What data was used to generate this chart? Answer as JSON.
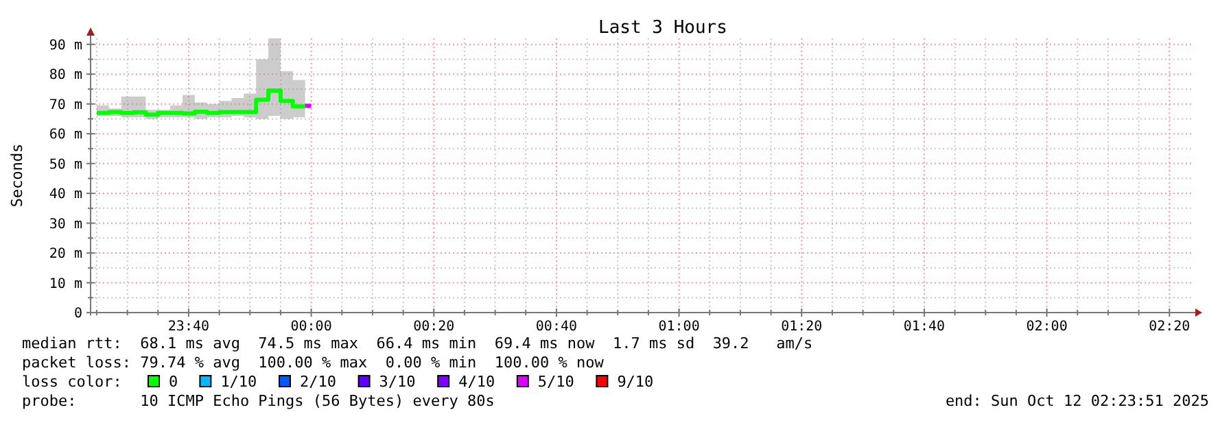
{
  "chart_data": {
    "type": "step",
    "title": "Last 3 Hours",
    "ylabel": "Seconds",
    "legend_title": "loss color:",
    "annotations": [
      "median rtt:  68.1 ms avg  74.5 ms max  66.4 ms min  69.4 ms now  1.7 ms sd  39.2   am/s",
      "packet loss: 79.74 % avg  100.00 % max  0.00 % min  100.00 % now",
      "probe:       10 ICMP Echo Pings (56 Bytes) every 80s",
      "end: Sun Oct 12 02:23:51 2025"
    ],
    "xlim": [
      "2025-10-11T23:24",
      "2025-10-12T02:24"
    ],
    "xticks": [
      {
        "value": "2025-10-11T23:25",
        "label": null
      },
      {
        "value": "2025-10-11T23:30",
        "label": null
      },
      {
        "value": "2025-10-11T23:35",
        "label": null
      },
      {
        "value": "2025-10-11T23:40",
        "label": "23:40"
      },
      {
        "value": "2025-10-11T23:45",
        "label": null
      },
      {
        "value": "2025-10-11T23:50",
        "label": null
      },
      {
        "value": "2025-10-11T23:55",
        "label": null
      },
      {
        "value": "2025-10-12T00:00",
        "label": "00:00"
      },
      {
        "value": "2025-10-12T00:05",
        "label": null
      },
      {
        "value": "2025-10-12T00:10",
        "label": null
      },
      {
        "value": "2025-10-12T00:15",
        "label": null
      },
      {
        "value": "2025-10-12T00:20",
        "label": "00:20"
      },
      {
        "value": "2025-10-12T00:25",
        "label": null
      },
      {
        "value": "2025-10-12T00:30",
        "label": null
      },
      {
        "value": "2025-10-12T00:35",
        "label": null
      },
      {
        "value": "2025-10-12T00:40",
        "label": "00:40"
      },
      {
        "value": "2025-10-12T00:45",
        "label": null
      },
      {
        "value": "2025-10-12T00:50",
        "label": null
      },
      {
        "value": "2025-10-12T00:55",
        "label": null
      },
      {
        "value": "2025-10-12T01:00",
        "label": "01:00"
      },
      {
        "value": "2025-10-12T01:05",
        "label": null
      },
      {
        "value": "2025-10-12T01:10",
        "label": null
      },
      {
        "value": "2025-10-12T01:15",
        "label": null
      },
      {
        "value": "2025-10-12T01:20",
        "label": "01:20"
      },
      {
        "value": "2025-10-12T01:25",
        "label": null
      },
      {
        "value": "2025-10-12T01:30",
        "label": null
      },
      {
        "value": "2025-10-12T01:35",
        "label": null
      },
      {
        "value": "2025-10-12T01:40",
        "label": "01:40"
      },
      {
        "value": "2025-10-12T01:45",
        "label": null
      },
      {
        "value": "2025-10-12T01:50",
        "label": null
      },
      {
        "value": "2025-10-12T01:55",
        "label": null
      },
      {
        "value": "2025-10-12T02:00",
        "label": "02:00"
      },
      {
        "value": "2025-10-12T02:05",
        "label": null
      },
      {
        "value": "2025-10-12T02:10",
        "label": null
      },
      {
        "value": "2025-10-12T02:15",
        "label": null
      },
      {
        "value": "2025-10-12T02:20",
        "label": "02:20"
      }
    ],
    "ylim": [
      0,
      92
    ],
    "yticks": [
      0,
      {
        "value": 5,
        "label": null
      },
      {
        "value": 10,
        "label": "10 m"
      },
      {
        "value": 15,
        "label": null
      },
      {
        "value": 20,
        "label": "20 m"
      },
      {
        "value": 25,
        "label": null
      },
      {
        "value": 30,
        "label": "30 m"
      },
      {
        "value": 35,
        "label": null
      },
      {
        "value": 40,
        "label": "40 m"
      },
      {
        "value": 45,
        "label": null
      },
      {
        "value": 50,
        "label": "50 m"
      },
      {
        "value": 55,
        "label": null
      },
      {
        "value": 60,
        "label": "60 m"
      },
      {
        "value": 65,
        "label": null
      },
      {
        "value": 70,
        "label": "70 m"
      },
      {
        "value": 75,
        "label": null
      },
      {
        "value": 80,
        "label": "80 m"
      },
      {
        "value": 85,
        "label": null
      },
      {
        "value": 90,
        "label": "90 m"
      }
    ],
    "grid": true,
    "legend": "bottom",
    "line_style": "solid",
    "series": [
      {
        "name": "0",
        "color": "#00ff00",
        "x": [
          "2025-10-11T23:25",
          "2025-10-11T23:27",
          "2025-10-11T23:29",
          "2025-10-11T23:31",
          "2025-10-11T23:33",
          "2025-10-11T23:35",
          "2025-10-11T23:37",
          "2025-10-11T23:39",
          "2025-10-11T23:41",
          "2025-10-11T23:43",
          "2025-10-11T23:45",
          "2025-10-11T23:47",
          "2025-10-11T23:49",
          "2025-10-11T23:51",
          "2025-10-11T23:53",
          "2025-10-11T23:55",
          "2025-10-11T23:57",
          "2025-10-11T23:59"
        ],
        "values": [
          67,
          67.3,
          67,
          67.2,
          66.4,
          67,
          67,
          66.8,
          67.4,
          67,
          67.3,
          67.3,
          67.3,
          71.4,
          74.5,
          71,
          69.2,
          69.2
        ],
        "lower": [
          66,
          66,
          65.5,
          65.5,
          65,
          65.5,
          65.5,
          65.5,
          65,
          65.5,
          65.5,
          66,
          65.5,
          65,
          66,
          65,
          65.5,
          65.5
        ],
        "upper": [
          69.5,
          68.5,
          72.5,
          72.5,
          68,
          68,
          69.5,
          73,
          70.5,
          70,
          71,
          72,
          73.5,
          85,
          92,
          81,
          78,
          81
        ]
      },
      {
        "name": "1/10",
        "color": "#00b8ff"
      },
      {
        "name": "2/10",
        "color": "#0059ff"
      },
      {
        "name": "3/10",
        "color": "#5e00ff"
      },
      {
        "name": "4/10",
        "color": "#7e00ff"
      },
      {
        "name": "5/10",
        "color": "#dd00ff",
        "x": [
          "2025-10-11T23:59",
          "2025-10-12T00:00"
        ],
        "values": [
          69.4,
          69.4
        ]
      },
      {
        "name": "9/10",
        "color": "#ff0000"
      }
    ]
  }
}
